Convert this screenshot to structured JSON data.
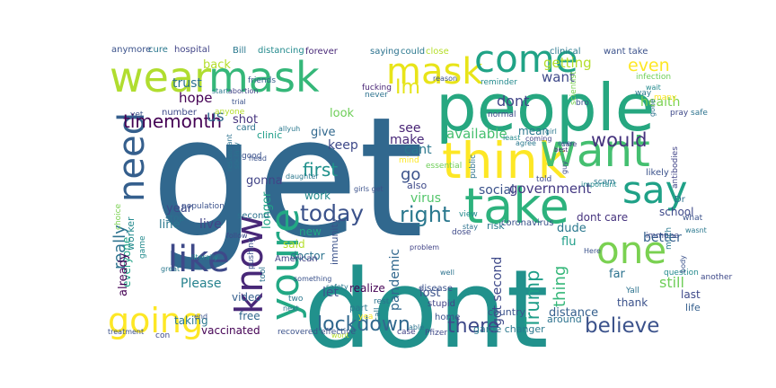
{
  "wordcloud": {
    "words": [
      {
        "text": "get",
        "color": "#31688e"
      },
      {
        "text": "dont",
        "color": "#21918c"
      },
      {
        "text": "people",
        "color": "#26a780"
      },
      {
        "text": "wear",
        "color": "#b0dd2f"
      },
      {
        "text": "mask",
        "color": "#35b779"
      },
      {
        "text": "mask",
        "color": "#e8e419"
      },
      {
        "text": "come",
        "color": "#20a386"
      },
      {
        "text": "think",
        "color": "#fde725"
      },
      {
        "text": "want",
        "color": "#44bf70"
      },
      {
        "text": "take",
        "color": "#2db27d"
      },
      {
        "text": "say",
        "color": "#1fa187"
      },
      {
        "text": "know",
        "color": "#482878"
      },
      {
        "text": "going",
        "color": "#fde725"
      },
      {
        "text": "like",
        "color": "#3e4989"
      },
      {
        "text": "need",
        "color": "#355f8d"
      },
      {
        "text": "youre",
        "color": "#22a884"
      },
      {
        "text": "one",
        "color": "#7ad151"
      },
      {
        "text": "today",
        "color": "#3b528b"
      },
      {
        "text": "right",
        "color": "#2a788e"
      },
      {
        "text": "lockdown",
        "color": "#31688e"
      },
      {
        "text": "believe",
        "color": "#3b528b"
      },
      {
        "text": "there",
        "color": "#3e4989"
      },
      {
        "text": "Trump",
        "color": "#1f9e89"
      },
      {
        "text": "Im",
        "color": "#e5e419"
      },
      {
        "text": "timemonth",
        "color": "#440154"
      },
      {
        "text": "first",
        "color": "#21918c"
      },
      {
        "text": "would",
        "color": "#46337e"
      },
      {
        "text": "us",
        "color": "#31688e"
      },
      {
        "text": "even",
        "color": "#fde725"
      },
      {
        "text": "really",
        "color": "#2c728e"
      },
      {
        "text": "go",
        "color": "#3b528b"
      },
      {
        "text": "dont",
        "color": "#414487"
      },
      {
        "text": "want",
        "color": "#3e4989"
      },
      {
        "text": "thing",
        "color": "#35b779"
      },
      {
        "text": "still",
        "color": "#6ece58"
      },
      {
        "text": "getting",
        "color": "#b5de2b"
      },
      {
        "text": "health",
        "color": "#7ad151"
      },
      {
        "text": "government",
        "color": "#443983"
      },
      {
        "text": "available",
        "color": "#46c06f"
      },
      {
        "text": "got second",
        "color": "#3e4989"
      },
      {
        "text": "Please",
        "color": "#26828e"
      },
      {
        "text": "longer",
        "color": "#20a386"
      },
      {
        "text": "virus",
        "color": "#52c569"
      },
      {
        "text": "social",
        "color": "#3b528b"
      },
      {
        "text": "pandemic",
        "color": "#31688e"
      },
      {
        "text": "better",
        "color": "#355f8d"
      },
      {
        "text": "hope",
        "color": "#440154"
      },
      {
        "text": "trust",
        "color": "#2c728e"
      },
      {
        "text": "back",
        "color": "#b5de2b"
      },
      {
        "text": "cant",
        "color": "#2a788e"
      },
      {
        "text": "see",
        "color": "#482475"
      },
      {
        "text": "make",
        "color": "#482878"
      },
      {
        "text": "keep",
        "color": "#3e4989"
      },
      {
        "text": "give",
        "color": "#31688e"
      },
      {
        "text": "shot",
        "color": "#46337e"
      },
      {
        "text": "look",
        "color": "#6ece58"
      },
      {
        "text": "work",
        "color": "#238a8d"
      },
      {
        "text": "new",
        "color": "#22a884"
      },
      {
        "text": "let",
        "color": "#3b528b"
      },
      {
        "text": "realize",
        "color": "#440154"
      },
      {
        "text": "immunity",
        "color": "#3b528b"
      },
      {
        "text": "doctor",
        "color": "#2c728e"
      },
      {
        "text": "said",
        "color": "#b5de2b"
      },
      {
        "text": "year",
        "color": "#3e4989"
      },
      {
        "text": "live",
        "color": "#414487"
      },
      {
        "text": "everyone",
        "color": "#20a386"
      },
      {
        "text": "line",
        "color": "#2a788e"
      },
      {
        "text": "clinic",
        "color": "#1f9e89"
      },
      {
        "text": "gonna",
        "color": "#414487"
      },
      {
        "text": "video",
        "color": "#355f8d"
      },
      {
        "text": "free",
        "color": "#31688e"
      },
      {
        "text": "taking",
        "color": "#2a788e"
      },
      {
        "text": "vaccinated",
        "color": "#440154"
      },
      {
        "text": "lost",
        "color": "#3b528b"
      },
      {
        "text": "distance",
        "color": "#355f8d"
      },
      {
        "text": "around",
        "color": "#2c728e"
      },
      {
        "text": "thank",
        "color": "#3b528b"
      },
      {
        "text": "dude",
        "color": "#2a788e"
      },
      {
        "text": "flu",
        "color": "#1f9e89"
      },
      {
        "text": "last",
        "color": "#3e4989"
      },
      {
        "text": "life",
        "color": "#355f8d"
      },
      {
        "text": "far",
        "color": "#2c728e"
      },
      {
        "text": "dont care",
        "color": "#46337e"
      },
      {
        "text": "school",
        "color": "#3e4989"
      },
      {
        "text": "mean",
        "color": "#2a788e"
      },
      {
        "text": "also",
        "color": "#3e4989"
      },
      {
        "text": "Bill",
        "color": "#2a788e"
      },
      {
        "text": "distancing",
        "color": "#238a8d"
      },
      {
        "text": "forever",
        "color": "#482878"
      },
      {
        "text": "hospital",
        "color": "#414487"
      },
      {
        "text": "cure",
        "color": "#2a788e"
      },
      {
        "text": "anymore",
        "color": "#3b528b"
      },
      {
        "text": "saying",
        "color": "#2c728e"
      },
      {
        "text": "could",
        "color": "#2a788e"
      },
      {
        "text": "close",
        "color": "#b5de2b"
      },
      {
        "text": "clinical",
        "color": "#2a788e"
      },
      {
        "text": "want take",
        "color": "#3b528b"
      },
      {
        "text": "infection",
        "color": "#6ece58"
      },
      {
        "text": "reminder",
        "color": "#238a8d"
      },
      {
        "text": "friends",
        "color": "#355f8d"
      },
      {
        "text": "abortion",
        "color": "#414487"
      },
      {
        "text": "start",
        "color": "#2a788e"
      },
      {
        "text": "trial",
        "color": "#3b528b"
      },
      {
        "text": "anyone",
        "color": "#b5de2b"
      },
      {
        "text": "fucking",
        "color": "#482475"
      },
      {
        "text": "never",
        "color": "#2c728e"
      },
      {
        "text": "normal",
        "color": "#3e4989"
      },
      {
        "text": "least",
        "color": "#238a8d"
      },
      {
        "text": "agree",
        "color": "#2a788e"
      },
      {
        "text": "coming",
        "color": "#414487"
      },
      {
        "text": "girl",
        "color": "#2a788e"
      },
      {
        "text": "ever",
        "color": "#2c728e"
      },
      {
        "text": "best",
        "color": "#482878"
      },
      {
        "text": "bro",
        "color": "#3b528b"
      },
      {
        "text": "pray",
        "color": "#3e4989"
      },
      {
        "text": "safe",
        "color": "#2c728e"
      },
      {
        "text": "scientist",
        "color": "#7ad151"
      },
      {
        "text": "way",
        "color": "#2a788e"
      },
      {
        "text": "many",
        "color": "#fde725"
      },
      {
        "text": "gone",
        "color": "#2c728e"
      },
      {
        "text": "wait",
        "color": "#238a8d"
      },
      {
        "text": "number",
        "color": "#3e4989"
      },
      {
        "text": "yet",
        "color": "#3b528b"
      },
      {
        "text": "card",
        "color": "#2c728e"
      },
      {
        "text": "head",
        "color": "#3b528b"
      },
      {
        "text": "allyuh",
        "color": "#2a788e"
      },
      {
        "text": "mind",
        "color": "#fde725"
      },
      {
        "text": "essential",
        "color": "#6ece58"
      },
      {
        "text": "public",
        "color": "#2c728e"
      },
      {
        "text": "told",
        "color": "#3e4989"
      },
      {
        "text": "scam",
        "color": "#2a788e"
      },
      {
        "text": "likely",
        "color": "#3b528b"
      },
      {
        "text": "antibodies",
        "color": "#414487"
      },
      {
        "text": "important",
        "color": "#238a8d"
      },
      {
        "text": "guy",
        "color": "#3e4989"
      },
      {
        "text": "Dr",
        "color": "#2c728e"
      },
      {
        "text": "what",
        "color": "#3b528b"
      },
      {
        "text": "wasnt",
        "color": "#2a788e"
      },
      {
        "text": "immune",
        "color": "#3e4989"
      },
      {
        "text": "Yall",
        "color": "#2c728e"
      },
      {
        "text": "Here",
        "color": "#3b528b"
      },
      {
        "text": "question",
        "color": "#238a8d"
      },
      {
        "text": "much",
        "color": "#2a788e"
      },
      {
        "text": "another",
        "color": "#3e4989"
      },
      {
        "text": "body",
        "color": "#3b528b"
      },
      {
        "text": "stay",
        "color": "#2c728e"
      },
      {
        "text": "risk",
        "color": "#2a788e"
      },
      {
        "text": "coronavirus",
        "color": "#3b528b"
      },
      {
        "text": "dose",
        "color": "#3e4989"
      },
      {
        "text": "view",
        "color": "#238a8d"
      },
      {
        "text": "disease",
        "color": "#3b528b"
      },
      {
        "text": "stupid",
        "color": "#414487"
      },
      {
        "text": "well",
        "color": "#2c728e"
      },
      {
        "text": "part",
        "color": "#2a788e"
      },
      {
        "text": "home",
        "color": "#3b528b"
      },
      {
        "text": "call",
        "color": "#2c728e"
      },
      {
        "text": "case",
        "color": "#414487"
      },
      {
        "text": "country",
        "color": "#3b528b"
      },
      {
        "text": "game changer",
        "color": "#2a788e"
      },
      {
        "text": "Pfizer",
        "color": "#3e4989"
      },
      {
        "text": "able",
        "color": "#2c728e"
      },
      {
        "text": "yea",
        "color": "#fde725"
      },
      {
        "text": "wont",
        "color": "#b5de2b"
      },
      {
        "text": "recovered effective",
        "color": "#3b528b"
      },
      {
        "text": "next",
        "color": "#2c728e"
      },
      {
        "text": "two",
        "color": "#2a788e"
      },
      {
        "text": "end",
        "color": "#3b528b"
      },
      {
        "text": "con",
        "color": "#3e4989"
      },
      {
        "text": "treatment",
        "color": "#3b528b"
      },
      {
        "text": "rest",
        "color": "#2c728e"
      },
      {
        "text": "safety",
        "color": "#2a788e"
      },
      {
        "text": "something",
        "color": "#3b528b"
      },
      {
        "text": "American",
        "color": "#414487"
      },
      {
        "text": "tool",
        "color": "#2c728e"
      },
      {
        "text": "pushing",
        "color": "#3b528b"
      },
      {
        "text": "literally",
        "color": "#238a8d"
      },
      {
        "text": "great",
        "color": "#2a788e"
      },
      {
        "text": "follow",
        "color": "#3e4989"
      },
      {
        "text": "stop",
        "color": "#2c728e"
      },
      {
        "text": "choice",
        "color": "#7ad151"
      },
      {
        "text": "population",
        "color": "#3b528b"
      },
      {
        "text": "worker",
        "color": "#238a8d"
      },
      {
        "text": "already",
        "color": "#440154"
      },
      {
        "text": "restaurant",
        "color": "#2c728e"
      },
      {
        "text": "girls get",
        "color": "#3b528b"
      },
      {
        "text": "problem",
        "color": "#414487"
      },
      {
        "text": "daughter",
        "color": "#2a788e"
      },
      {
        "text": "second",
        "color": "#2c728e"
      },
      {
        "text": "good",
        "color": "#3b528b"
      },
      {
        "text": "game",
        "color": "#238a8d"
      },
      {
        "text": "socially",
        "color": "#2c728e"
      },
      {
        "text": "reason",
        "color": "#3b528b"
      },
      {
        "text": "care",
        "color": "#414487"
      },
      {
        "text": "fuck",
        "color": "#2a788e"
      }
    ]
  }
}
